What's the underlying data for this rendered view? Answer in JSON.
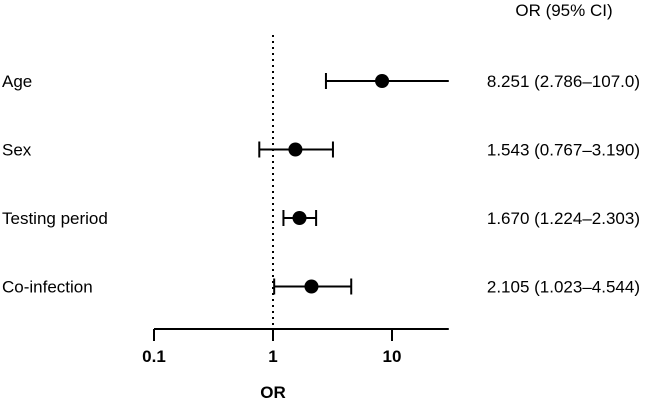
{
  "chart_data": {
    "type": "forest",
    "xlabel": "OR",
    "x_scale": "log10",
    "xlim": [
      0.1,
      30
    ],
    "reference_line": 1,
    "x_ticks": [
      0.1,
      1,
      10
    ],
    "x_tick_labels": [
      "0.1",
      "1",
      "10"
    ],
    "ci_header": "OR (95% CI)",
    "rows": [
      {
        "label": "Age",
        "or": 8.251,
        "lower": 2.786,
        "upper": 107.0,
        "ci_text": "8.251 (2.786–107.0)"
      },
      {
        "label": "Sex",
        "or": 1.543,
        "lower": 0.767,
        "upper": 3.19,
        "ci_text": "1.543 (0.767–3.190)"
      },
      {
        "label": "Testing period",
        "or": 1.67,
        "lower": 1.224,
        "upper": 2.303,
        "ci_text": "1.670 (1.224–2.303)"
      },
      {
        "label": "Co-infection",
        "or": 2.105,
        "lower": 1.023,
        "upper": 4.544,
        "ci_text": "2.105 (1.023–4.544)"
      }
    ]
  }
}
